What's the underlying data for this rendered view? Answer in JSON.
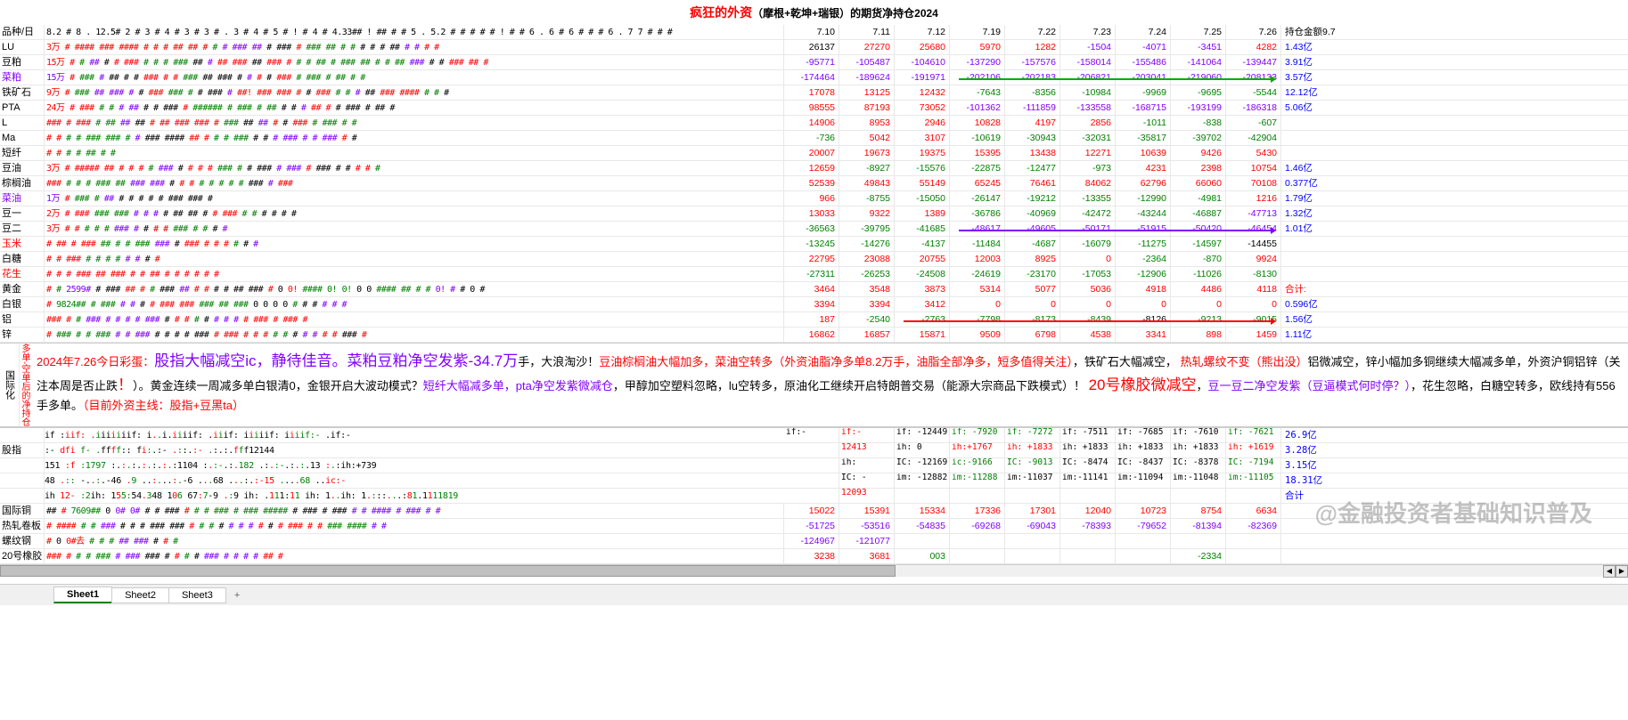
{
  "title_red": "疯狂的外资",
  "title_black": "（摩根+乾坤+瑞银）的期货净持仓",
  "title_year": "2024",
  "header": {
    "label": "品种/日",
    "mini_dates": "8.2|#|8|.|12.5#|2|#|3|#|4|#|3|#|3|#|.|3|#|4|#|5|#|!|#|4|#|4.33##|!|##|#|#|5|.|5.2|#|#|#|#|#|!|#|#|6|.|6|#|6|#|#|#|6|.|7|7|#|#|#|",
    "dates": [
      "7.10",
      "7.11",
      "7.12",
      "7.19",
      "7.22",
      "7.23",
      "7.24",
      "7.25",
      "7.26"
    ],
    "last": "持仓金额9.7"
  },
  "rows": [
    {
      "label": "LU",
      "lc": "b",
      "open": "3万",
      "oc": "r",
      "hash": "# #### ### #### # # # ## ## # # # ### ## # ### # ### ## # # # # # ## # # # #",
      "vals": [
        "26137",
        "27270",
        "25680",
        "5970",
        "1282",
        "-1504",
        "-4071",
        "-3451",
        "4282"
      ],
      "vc": [
        "b",
        "r",
        "r",
        "r",
        "r",
        "p",
        "p",
        "p",
        "r"
      ],
      "last": "1.43亿",
      "lc2": "bl"
    },
    {
      "label": "豆粕",
      "lc": "b",
      "open": "15万",
      "oc": "r",
      "hash": "# # ## # # ### # # # ### ## # ## ### ## ### # # # ## # ### ## # # ## ### # # ### ## #",
      "vals": [
        "-95771",
        "-105487",
        "-104610",
        "-137290",
        "-157576",
        "-158014",
        "-155486",
        "-141064",
        "-139447"
      ],
      "vc": [
        "p",
        "p",
        "p",
        "p",
        "p",
        "p",
        "p",
        "p",
        "p"
      ],
      "last": "3.91亿",
      "lc2": "bl"
    },
    {
      "label": "菜粕",
      "lc": "p",
      "open": "15万",
      "oc": "p",
      "hash": "# ### # ## # # ### # # ### ## ### # # # # ### # ### # ## # #",
      "vals": [
        "-174464",
        "-189624",
        "-191971",
        "-202106",
        "-202183",
        "-206821",
        "-203041",
        "-219060",
        "-208133"
      ],
      "vc": [
        "p",
        "p",
        "p",
        "p",
        "p",
        "p",
        "p",
        "p",
        "p"
      ],
      "last": "3.57亿",
      "lc2": "bl",
      "arrow": "green",
      "arrow_from": 3,
      "arrow_to": 8
    },
    {
      "label": "铁矿石",
      "lc": "b",
      "open": "9万",
      "oc": "r",
      "hash": "# ### ## ### # # ### ### # # ### # ##! ### ### # # ### # # # ## ### #### # # #",
      "vals": [
        "17078",
        "13125",
        "12432",
        "-7643",
        "-8356",
        "-10984",
        "-9969",
        "-9695",
        "-5544"
      ],
      "vc": [
        "r",
        "r",
        "r",
        "g",
        "g",
        "g",
        "g",
        "g",
        "g"
      ],
      "last": "12.12亿",
      "lc2": "bl"
    },
    {
      "label": "PTA",
      "lc": "b",
      "open": "24万",
      "oc": "r",
      "hash": "# ### # # # ## # # ### # ###### # ### # ## # # # ## # # ### # ## #",
      "vals": [
        "98555",
        "87193",
        "73052",
        "-101362",
        "-111859",
        "-133558",
        "-168715",
        "-193199",
        "-186318"
      ],
      "vc": [
        "r",
        "r",
        "r",
        "p",
        "p",
        "p",
        "p",
        "p",
        "p"
      ],
      "last": "5.06亿",
      "lc2": "bl"
    },
    {
      "label": "L",
      "lc": "b",
      "open": "",
      "oc": "b",
      "hash": "### # ### # ## ## ## # ## ### ### # ### ## ## # # ### # ### # #",
      "vals": [
        "14906",
        "8953",
        "2946",
        "10828",
        "4197",
        "2856",
        "-1011",
        "-838",
        "-607"
      ],
      "vc": [
        "r",
        "r",
        "r",
        "r",
        "r",
        "r",
        "g",
        "g",
        "g"
      ],
      "last": "",
      "lc2": "b"
    },
    {
      "label": "Ma",
      "lc": "b",
      "open": "",
      "oc": "b",
      "hash": "# # # # ### ### # # ### #### ## # # # ### # # # ### # # ### # #",
      "vals": [
        "-736",
        "5042",
        "3107",
        "-10619",
        "-30943",
        "-32031",
        "-35817",
        "-39702",
        "-42904"
      ],
      "vc": [
        "g",
        "r",
        "r",
        "g",
        "g",
        "g",
        "g",
        "g",
        "g"
      ],
      "last": "",
      "lc2": "b"
    },
    {
      "label": "短纤",
      "lc": "b",
      "open": "",
      "oc": "b",
      "hash": "# # # # ## # #",
      "vals": [
        "20007",
        "19673",
        "19375",
        "15395",
        "13438",
        "12271",
        "10639",
        "9426",
        "5430"
      ],
      "vc": [
        "r",
        "r",
        "r",
        "r",
        "r",
        "r",
        "r",
        "r",
        "r"
      ],
      "last": "",
      "lc2": "b"
    },
    {
      "label": "豆油",
      "lc": "b",
      "open": "3万",
      "oc": "r",
      "hash": "# ##### ## # # # # ### # # # # ### # # ### # ### # ### # # # # #",
      "vals": [
        "12659",
        "-8927",
        "-15576",
        "-22875",
        "-12477",
        "-973",
        "4231",
        "2398",
        "10754"
      ],
      "vc": [
        "r",
        "g",
        "g",
        "g",
        "g",
        "g",
        "r",
        "r",
        "r"
      ],
      "last": "1.46亿",
      "lc2": "bl"
    },
    {
      "label": "棕榈油",
      "lc": "b",
      "open": "",
      "oc": "b",
      "hash": "### # # # ### ## ### ### # # # # # # # # ### # ###",
      "vals": [
        "52539",
        "49843",
        "55149",
        "65245",
        "76461",
        "84062",
        "62796",
        "66060",
        "70108"
      ],
      "vc": [
        "r",
        "r",
        "r",
        "r",
        "r",
        "r",
        "r",
        "r",
        "r"
      ],
      "last": "0.377亿",
      "lc2": "bl"
    },
    {
      "label": "菜油",
      "lc": "p",
      "open": "1万",
      "oc": "p",
      "hash": "# ### # ## # # # # # ### ### #",
      "vals": [
        "966",
        "-8755",
        "-15050",
        "-26147",
        "-19212",
        "-13355",
        "-12990",
        "-4981",
        "1216"
      ],
      "vc": [
        "r",
        "g",
        "g",
        "g",
        "g",
        "g",
        "g",
        "g",
        "r"
      ],
      "last": "1.79亿",
      "lc2": "bl"
    },
    {
      "label": "豆一",
      "lc": "b",
      "open": "2万",
      "oc": "r",
      "hash": "# ### ### ### # # # # ## ## # # ### # # # # # #",
      "vals": [
        "13033",
        "9322",
        "1389",
        "-36786",
        "-40969",
        "-42472",
        "-43244",
        "-46887",
        "-47713"
      ],
      "vc": [
        "r",
        "r",
        "r",
        "g",
        "g",
        "g",
        "g",
        "g",
        "p"
      ],
      "last": "1.32亿",
      "lc2": "bl"
    },
    {
      "label": "豆二",
      "lc": "b",
      "open": "3万",
      "oc": "r",
      "hash": "# # # # # ### # # # # ### # # # #",
      "vals": [
        "-36563",
        "-39795",
        "-41685",
        "-48617",
        "-49605",
        "-50171",
        "-51915",
        "-50420",
        "-46454"
      ],
      "vc": [
        "g",
        "g",
        "g",
        "p",
        "p",
        "p",
        "p",
        "p",
        "p"
      ],
      "last": "1.01亿",
      "lc2": "bl",
      "arrow": "purple",
      "arrow_from": 3,
      "arrow_to": 8
    },
    {
      "label": "玉米",
      "lc": "r",
      "open": "",
      "oc": "b",
      "hash": "# ## # ### ## # # ### ### # ### # # # # # #",
      "vals": [
        "-13245",
        "-14276",
        "-4137",
        "-11484",
        "-4687",
        "-16079",
        "-11275",
        "-14597",
        "-14455"
      ],
      "vc": [
        "g",
        "g",
        "g",
        "g",
        "g",
        "g",
        "g",
        "g",
        "b"
      ],
      "last": "",
      "lc2": "b"
    },
    {
      "label": "白糖",
      "lc": "b",
      "open": "",
      "oc": "b",
      "hash": "# # ### # # # # # # # #",
      "vals": [
        "22795",
        "23088",
        "20755",
        "12003",
        "8925",
        "0",
        "-2364",
        "-870",
        "9924"
      ],
      "vc": [
        "r",
        "r",
        "r",
        "r",
        "r",
        "r",
        "g",
        "g",
        "r"
      ],
      "last": "",
      "lc2": "b"
    },
    {
      "label": "花生",
      "lc": "r",
      "open": "",
      "oc": "b",
      "hash": "# # # ### ## ### # # ## # # # # # #",
      "vals": [
        "-27311",
        "-26253",
        "-24508",
        "-24619",
        "-23170",
        "-17053",
        "-12906",
        "-11026",
        "-8130"
      ],
      "vc": [
        "g",
        "g",
        "g",
        "g",
        "g",
        "g",
        "g",
        "g",
        "g"
      ],
      "last": "",
      "lc2": "b"
    },
    {
      "label": "黄金",
      "lc": "b",
      "open": "",
      "oc": "b",
      "hash": "# # 2599# # ### ## # # ### ## # # # # ## ### # 0 0! #### 0! 0! 0 0 #### ## # # 0! # # 0 #",
      "vals": [
        "3464",
        "3548",
        "3873",
        "5314",
        "5077",
        "5036",
        "4918",
        "4486",
        "4118"
      ],
      "vc": [
        "r",
        "r",
        "r",
        "r",
        "r",
        "r",
        "r",
        "r",
        "r"
      ],
      "last": "合计:",
      "lc2": "r"
    },
    {
      "label": "白银",
      "lc": "b",
      "open": "",
      "oc": "b",
      "hash": "# 9824## # ### # # # # ### ### ### ## ### 0 0 0 0 # # # # # #",
      "vals": [
        "3394",
        "3394",
        "3412",
        "0",
        "0",
        "0",
        "0",
        "0",
        "0"
      ],
      "vc": [
        "r",
        "r",
        "r",
        "r",
        "r",
        "r",
        "r",
        "r",
        "r"
      ],
      "last": "0.596亿",
      "lc2": "bl"
    },
    {
      "label": "铝",
      "lc": "b",
      "open": "",
      "oc": "b",
      "hash": "### # # ### # # # # ### # # # # # # # # # ### # ### #",
      "vals": [
        "187",
        "-2540",
        "-2763",
        "-7798",
        "-8173",
        "-8439",
        "-8126",
        "-9213",
        "-9015"
      ],
      "vc": [
        "r",
        "g",
        "g",
        "g",
        "g",
        "g",
        "b",
        "g",
        "g"
      ],
      "last": "1.56亿",
      "lc2": "bl",
      "arrow": "red",
      "arrow_from": 2,
      "arrow_to": 8
    },
    {
      "label": "锌",
      "lc": "b",
      "open": "",
      "oc": "b",
      "hash": "# ### # # ### # # ### # # # # ### # ### # # # # # # # # # # ### #",
      "vals": [
        "16862",
        "16857",
        "15871",
        "9509",
        "6798",
        "4538",
        "3341",
        "898",
        "1459"
      ],
      "vc": [
        "r",
        "r",
        "r",
        "r",
        "r",
        "r",
        "r",
        "r",
        "r"
      ],
      "last": "1.11亿",
      "lc2": "bl"
    }
  ],
  "side_labels": "多单-空单后的净持仓",
  "group_label": "国际化",
  "commentary": {
    "date": "2024年7.26今日彩蛋：",
    "p1_big": "股指大幅减空ic，静待佳音。菜粕豆粕净空发紫-34.7万",
    "p1_rest": "手，大浪淘沙！",
    "p1_red": "豆油棕榈油大幅加多，菜油空转多（外资油脂净多单8.2万手，油脂全部净多，短多值得关注）",
    "p1_tail": "，",
    "p1_tail2": "铁矿石大幅减空，",
    "p2_red": "热轧螺纹不变（熊出没）",
    "p2_b": "铝微减空，锌小幅加多铜继续大幅减多单，外资沪铜铝锌（关注本周是否止跌",
    "p2_exc": "！",
    "p2_rest": "）。黄金连续一周减多单白银清0，金银开启大波动模式？",
    "p2_purple": "短纤大幅减多单，pta净空发紫微减仓",
    "p2_tail": "，甲醇加空塑料忽略，lu空转多，原油化工继续开启特朗普交易（能源大宗商品下跌模式）！",
    "p3_big": "20号橡胶微减空",
    "p3_rest": "，",
    "p3_purple": "豆一豆二净空发紫（豆逼模式何时停？）",
    "p3_rest2": "，花生忽略，白糖空转多，欧线持有556手多单。",
    "p3_red": "（目前外资主线：股指+豆黑ta）"
  },
  "index_rows": [
    {
      "label": "",
      "mid": "if :|iif: .|i|i|i|i|i|iif: |i|.|.|i|.|i|i|i|if: .|i|i|if: |i|i|i|iif: |i|i|iif:- |.|if:-",
      "cells": [
        "if:-",
        "if:-",
        "if: -12449",
        "if: -7920",
        "if: -7272",
        "if: -7511",
        "if: -7685",
        "if: -7610",
        "if: -7621"
      ],
      "cc": [
        "b",
        "r",
        "b",
        "g",
        "g",
        "b",
        "b",
        "b",
        "g"
      ],
      "last": "26.9亿"
    },
    {
      "label": "股指",
      "mid": ":- |dfi |f- .|f|f|f|f|:: |f|i|:|.|:- |.|:|:|.|:- |.|:.|:.|f|f|f12144",
      "cells": [
        "",
        "12413",
        "ih: 0",
        "ih:+1767",
        "ih: +1833",
        "ih: +1833",
        "ih: +1833",
        "ih: +1833",
        "ih: +1619"
      ],
      "cc": [
        "b",
        "r",
        "b",
        "r",
        "r",
        "b",
        "b",
        "b",
        "r"
      ],
      "last": "3.28亿"
    },
    {
      "label": "",
      "mid": "151 |:f |:1797 |:|.|:|.|:|.|:|.|:|.|:|.|:1104 |:|.|:-|.|:|.|182 |.|:|.|:-|.|:|.|:|.|13 |:|.|:|ih:+739",
      "cells": [
        "",
        "ih:",
        "IC: -12169",
        "ic:-9166",
        "IC: -9013",
        "IC: -8474",
        "IC: -8437",
        "IC: -8378",
        "IC: -7194"
      ],
      "cc": [
        "b",
        "b",
        "b",
        "g",
        "g",
        "b",
        "b",
        "b",
        "g"
      ],
      "last": "3.15亿"
    },
    {
      "label": "",
      "mid": "48 |.|:: |-|.|.|:|.|-46 |.|9 |.|.|:|.|.|.|:|.|-6 |.|.|.|68 |.|.|.|:|.|:-15 |.|.|.|.|68 |.|.|ic:-",
      "cells": [
        "",
        "IC: -",
        "im: -12882",
        "im:-11288",
        "im:-11037",
        "im:-11141",
        "im:-11094",
        "im:-11048",
        "im:-11105"
      ],
      "cc": [
        "b",
        "b",
        "b",
        "g",
        "b",
        "b",
        "b",
        "b",
        "g"
      ],
      "last": "18.31亿"
    },
    {
      "label": "",
      "mid": "ih |12- |:2|ih: |1|5|5:|5|4|.|3|48 |1|0|6 |6|7|:|7|-|9 |.|:|9 |ih: .|1|1|1|:|1|1 |ih: |1|.|.|ih: |1|.|:|:|:|.|.|.|:|8|1|.|1|1|11819",
      "cells": [
        "",
        "12093",
        "",
        "",
        "",
        "",
        "",
        "",
        ""
      ],
      "cc": [
        "b",
        "r",
        "b",
        "b",
        "b",
        "b",
        "b",
        "b",
        "b"
      ],
      "last": "合计"
    }
  ],
  "bottom_rows": [
    {
      "label": "国际铜",
      "lc": "b",
      "open": "##",
      "oc": "b",
      "hash": "# 7609## 0 0# 0# # # ### # # # ### # ### ##### # ### # ### # # #### # ### # #",
      "vals": [
        "15022",
        "15391",
        "15334",
        "17336",
        "17301",
        "12040",
        "10723",
        "8754",
        "6634"
      ],
      "vc": [
        "r",
        "r",
        "r",
        "r",
        "r",
        "r",
        "r",
        "r",
        "r"
      ],
      "last": ""
    },
    {
      "label": "热轧卷板",
      "lc": "b",
      "open": "",
      "oc": "b",
      "hash": "# #### # # ### # # # ### ### # # # # # # # # # # ### # # ### #### # #",
      "vals": [
        "-51725",
        "-53516",
        "-54835",
        "-69268",
        "-69043",
        "-78393",
        "-79652",
        "-81394",
        "-82369"
      ],
      "vc": [
        "p",
        "p",
        "p",
        "p",
        "p",
        "p",
        "p",
        "p",
        "p"
      ],
      "last": ""
    },
    {
      "label": "螺纹钢",
      "lc": "b",
      "open": "",
      "oc": "b",
      "hash": "# 0 0#去 # # # ## ### # # #",
      "vals": [
        "-124967",
        "-121077",
        "",
        "",
        "",
        "",
        "",
        "",
        ""
      ],
      "vc": [
        "p",
        "p",
        "b",
        "b",
        "b",
        "b",
        "b",
        "b",
        "b"
      ],
      "last": ""
    },
    {
      "label": "20号橡胶",
      "lc": "b",
      "open": "",
      "oc": "b",
      "hash": "### # # # ### # ### ### # # # # ### # # # # ## #",
      "vals": [
        "3238",
        "3681",
        "003",
        "",
        "",
        "",
        "",
        "-2334",
        ""
      ],
      "vc": [
        "r",
        "r",
        "g",
        "b",
        "b",
        "b",
        "b",
        "g",
        "b"
      ],
      "last": ""
    }
  ],
  "watermark": "@金融投资者基础知识普及",
  "sheets": [
    "Sheet1",
    "Sheet2",
    "Sheet3"
  ],
  "active_sheet": 0
}
